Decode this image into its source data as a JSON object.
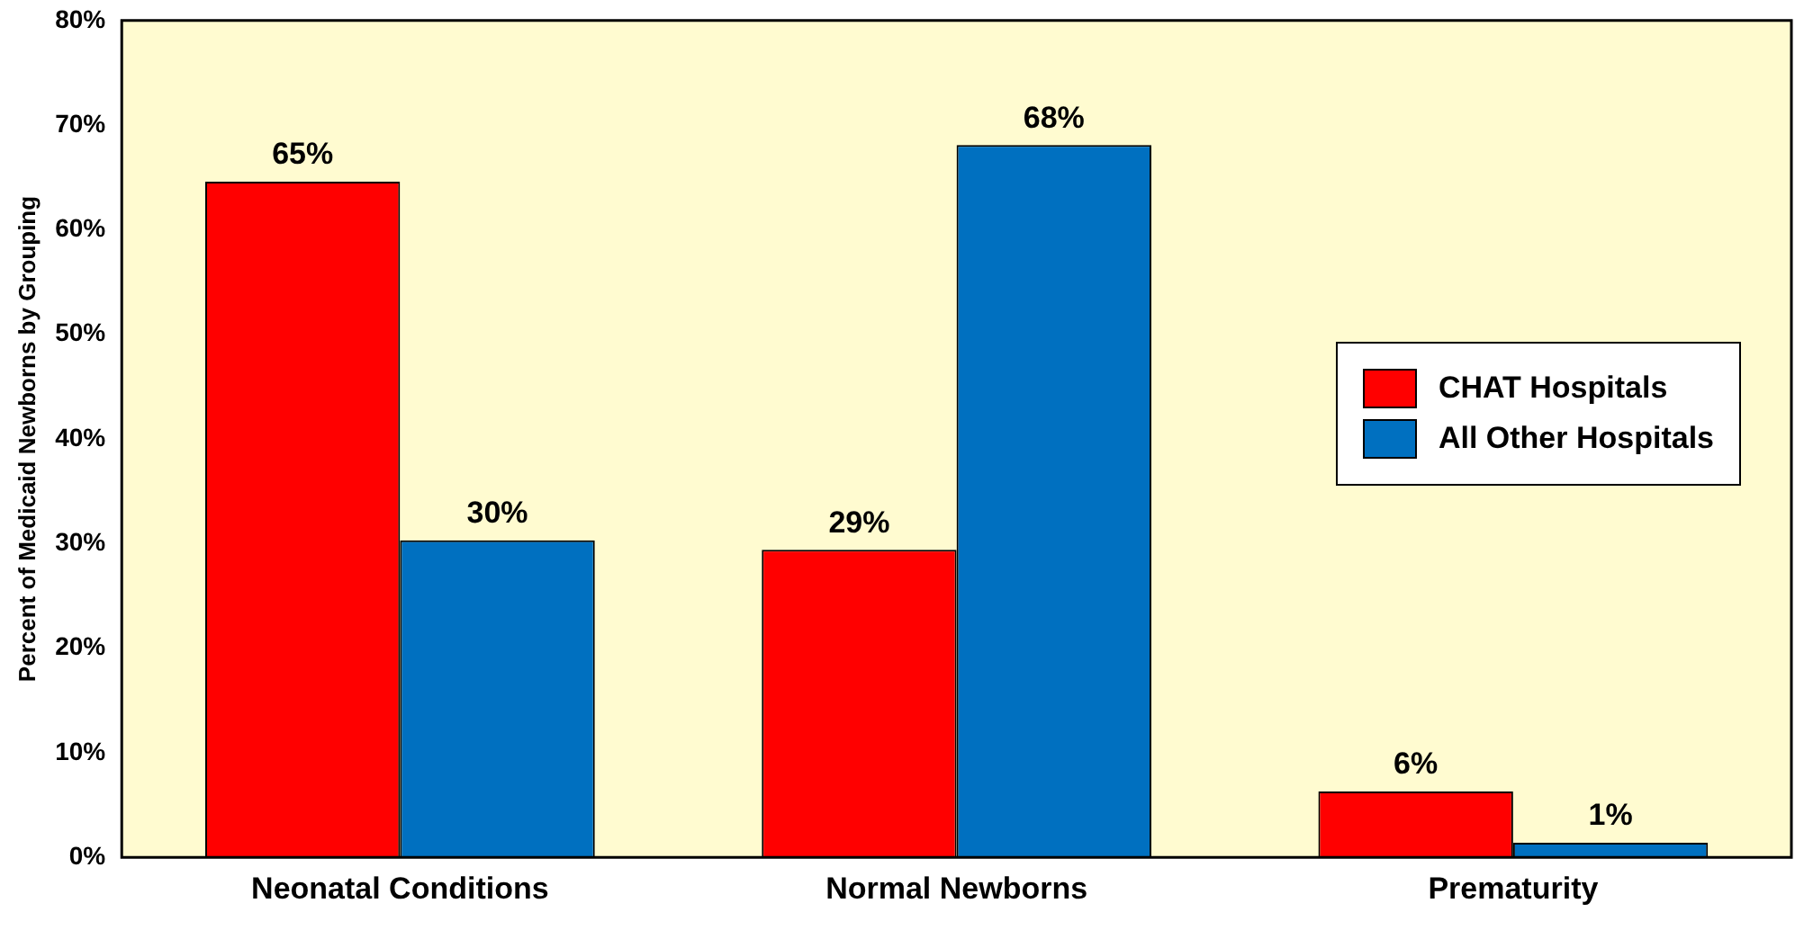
{
  "chart_data": {
    "type": "bar",
    "ylabel": "Percent of Medicaid Newborns by Grouping",
    "categories": [
      "Neonatal Conditions",
      "Normal Newborns",
      "Prematurity"
    ],
    "series": [
      {
        "name": "CHAT Hospitals",
        "color": "#ff0000",
        "values": [
          64.6,
          29.4,
          6.3
        ],
        "value_labels": [
          "65%",
          "29%",
          "6%"
        ]
      },
      {
        "name": "All Other Hospitals",
        "color": "#0070c0",
        "values": [
          30.3,
          68.1,
          1.4
        ],
        "value_labels": [
          "30%",
          "68%",
          "1%"
        ]
      }
    ],
    "ylim": [
      0,
      80
    ],
    "yticks": [
      {
        "value": 0,
        "label": "0%"
      },
      {
        "value": 10,
        "label": "10%"
      },
      {
        "value": 20,
        "label": "20%"
      },
      {
        "value": 30,
        "label": "30%"
      },
      {
        "value": 40,
        "label": "40%"
      },
      {
        "value": 50,
        "label": "50%"
      },
      {
        "value": 60,
        "label": "60%"
      },
      {
        "value": 70,
        "label": "70%"
      },
      {
        "value": 80,
        "label": "80%"
      }
    ],
    "grid": false,
    "legend": "right"
  }
}
